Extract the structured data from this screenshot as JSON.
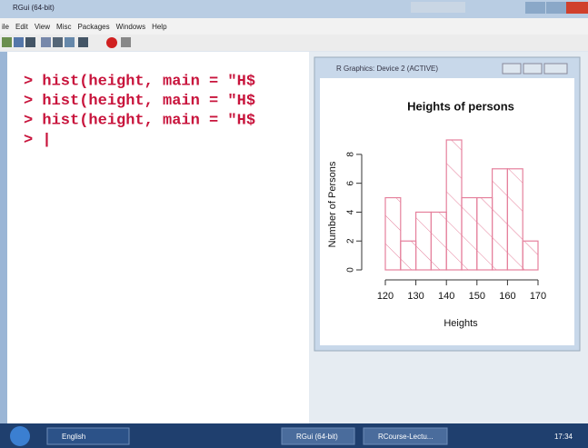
{
  "window": {
    "title": "RGui (64-bit)",
    "menu": [
      "ile",
      "Edit",
      "View",
      "Misc",
      "Packages",
      "Windows",
      "Help"
    ]
  },
  "console": {
    "lines": [
      "> hist(height, main = \"H$",
      "> hist(height, main = \"H$",
      "> hist(height, main = \"H$",
      "> |"
    ]
  },
  "graphics_window": {
    "title": "R Graphics: Device 2 (ACTIVE)"
  },
  "chart_data": {
    "type": "histogram",
    "title": "Heights of persons",
    "x_label": "Heights",
    "y_label": "Number of Persons",
    "bins": [
      120,
      125,
      130,
      135,
      140,
      145,
      150,
      155,
      160,
      165,
      170
    ],
    "values": [
      5,
      2,
      4,
      4,
      9,
      5,
      5,
      7,
      7,
      2
    ],
    "color": "#e5809c",
    "xlim": [
      120,
      170
    ],
    "xticks": [
      120,
      130,
      140,
      150,
      160,
      170
    ],
    "ylim": [
      0,
      9
    ],
    "yticks": [
      0,
      2,
      4,
      6,
      8
    ]
  },
  "taskbar": {
    "items": [
      "English",
      "RGui (64-bit)",
      "RCourse-Lectu..."
    ],
    "clock": "17:34"
  }
}
